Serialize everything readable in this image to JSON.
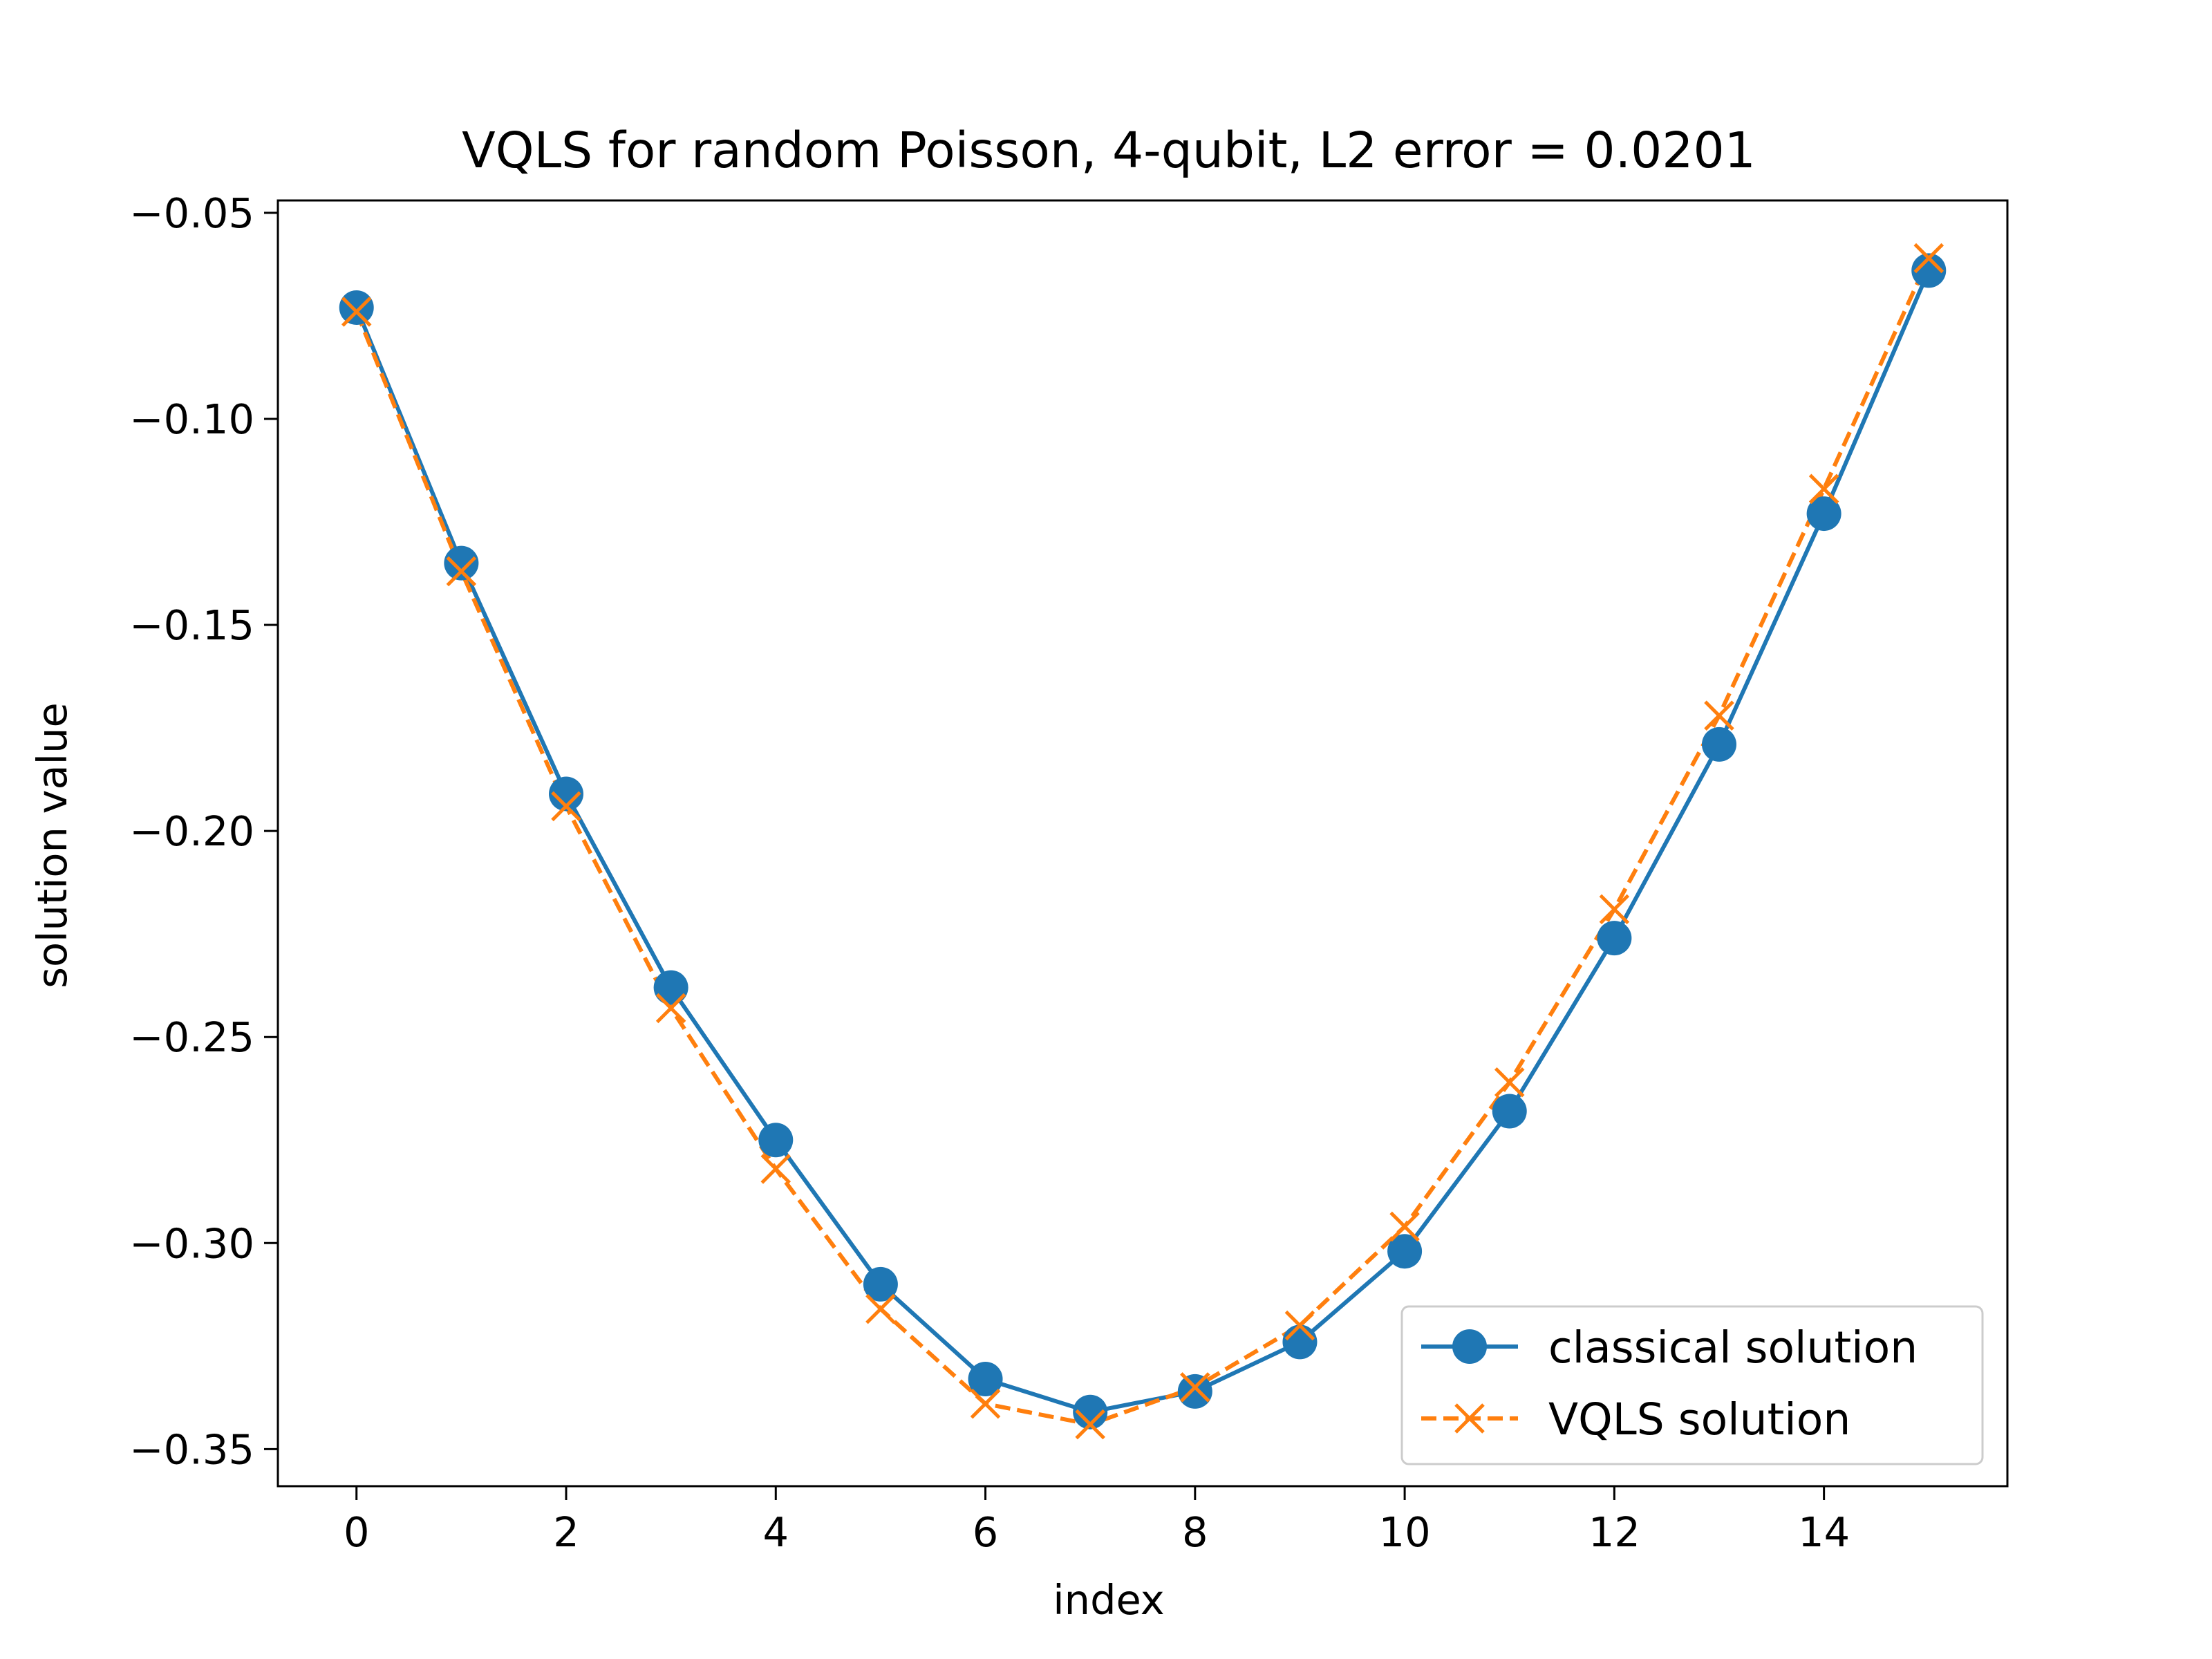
{
  "chart_data": {
    "type": "line",
    "title": "VQLS for random Poisson, 4-qubit, L2 error = 0.0201",
    "xlabel": "index",
    "ylabel": "solution value",
    "xlim": [
      -0.75,
      15.75
    ],
    "ylim": [
      -0.359,
      -0.047
    ],
    "x": [
      0,
      1,
      2,
      3,
      4,
      5,
      6,
      7,
      8,
      9,
      10,
      11,
      12,
      13,
      14,
      15
    ],
    "xticks": [
      0,
      2,
      4,
      6,
      8,
      10,
      12,
      14
    ],
    "xtick_labels": [
      "0",
      "2",
      "4",
      "6",
      "8",
      "10",
      "12",
      "14"
    ],
    "yticks": [
      -0.05,
      -0.1,
      -0.15,
      -0.2,
      -0.25,
      -0.3,
      -0.35
    ],
    "ytick_labels": [
      "−0.05",
      "−0.10",
      "−0.15",
      "−0.20",
      "−0.25",
      "−0.30",
      "−0.35"
    ],
    "grid": false,
    "legend_position": "lower-right",
    "series": [
      {
        "name": "classical solution",
        "color": "#1f77b4",
        "marker": "circle",
        "linestyle": "solid",
        "values": [
          -0.073,
          -0.135,
          -0.191,
          -0.238,
          -0.275,
          -0.31,
          -0.333,
          -0.341,
          -0.336,
          -0.324,
          -0.302,
          -0.268,
          -0.226,
          -0.179,
          -0.123,
          -0.064
        ]
      },
      {
        "name": "VQLS solution",
        "color": "#ff7f0e",
        "marker": "x",
        "linestyle": "dashed",
        "values": [
          -0.074,
          -0.137,
          -0.194,
          -0.243,
          -0.282,
          -0.316,
          -0.339,
          -0.344,
          -0.335,
          -0.32,
          -0.296,
          -0.261,
          -0.219,
          -0.172,
          -0.117,
          -0.061
        ]
      }
    ]
  }
}
